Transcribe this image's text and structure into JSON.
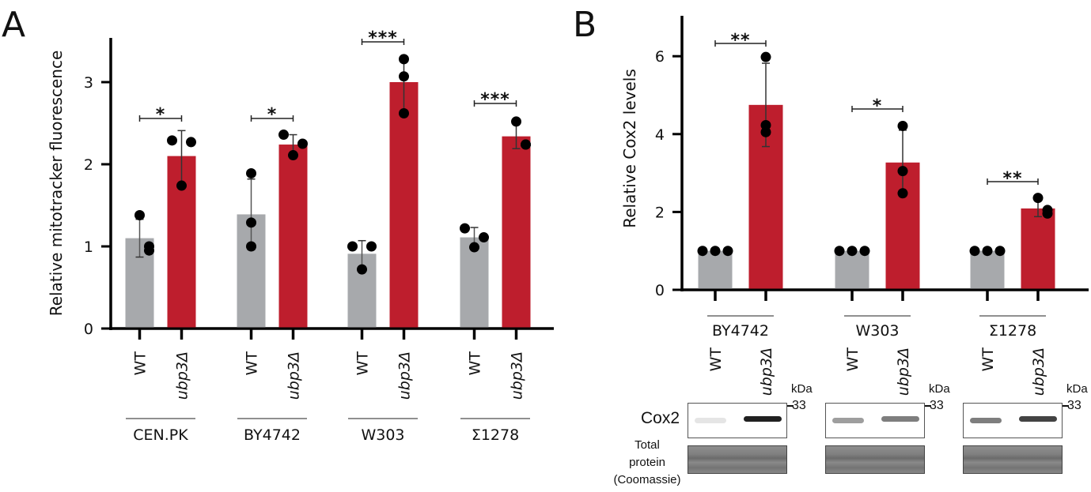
{
  "colors": {
    "wt": "#a7a9ac",
    "mutant": "#be1e2d",
    "point": "#000000"
  },
  "chart_data": [
    {
      "panel_label": "A",
      "type": "bar",
      "ylabel": "Relative mitotracker fluorescence",
      "ylim": [
        0,
        3.5
      ],
      "yticks": [
        "0",
        "1",
        "2",
        "3"
      ],
      "ytick_values": [
        0,
        1,
        2,
        3
      ],
      "conditions": [
        "WT",
        "ubp3Δ"
      ],
      "categories": [
        "CEN.PK",
        "BY4742",
        "W303",
        "Σ1278"
      ],
      "series": [
        {
          "name": "WT",
          "values": [
            1.1,
            1.39,
            0.91,
            1.11
          ],
          "err_low": [
            0.87,
            0.96,
            0.75,
            0.99
          ],
          "err_high": [
            1.33,
            1.82,
            1.07,
            1.23
          ],
          "points": [
            [
              1.38,
              0.95,
              1.0
            ],
            [
              1.89,
              1.29,
              1.0
            ],
            [
              1.0,
              1.0,
              0.72
            ],
            [
              1.22,
              1.11,
              0.99
            ]
          ]
        },
        {
          "name": "ubp3Δ",
          "values": [
            2.1,
            2.24,
            3.0,
            2.34
          ],
          "err_low": [
            1.75,
            2.11,
            2.62,
            2.19
          ],
          "err_high": [
            2.41,
            2.36,
            3.3,
            2.5
          ],
          "points": [
            [
              2.29,
              2.27,
              1.74
            ],
            [
              2.36,
              2.25,
              2.11
            ],
            [
              3.28,
              3.07,
              2.62
            ],
            [
              2.52,
              2.24,
              2.24
            ]
          ]
        }
      ],
      "significance": [
        "*",
        "*",
        "***",
        "***"
      ]
    },
    {
      "panel_label": "B",
      "type": "bar",
      "ylabel": "Relative Cox2 levels",
      "ylim": [
        0,
        7
      ],
      "yticks": [
        "0",
        "2",
        "4",
        "6"
      ],
      "ytick_values": [
        0,
        2,
        4,
        6
      ],
      "conditions": [
        "WT",
        "ubp3Δ"
      ],
      "categories": [
        "BY4742",
        "W303",
        "Σ1278"
      ],
      "series": [
        {
          "name": "WT",
          "values": [
            1,
            1,
            1
          ],
          "err_low": [
            1,
            1,
            1
          ],
          "err_high": [
            1,
            1,
            1
          ],
          "points": [
            [
              1,
              1,
              1
            ],
            [
              1,
              1,
              1
            ],
            [
              1,
              1,
              1
            ]
          ]
        },
        {
          "name": "ubp3Δ",
          "values": [
            4.75,
            3.27,
            2.09
          ],
          "err_low": [
            3.68,
            2.45,
            1.88
          ],
          "err_high": [
            5.82,
            4.1,
            2.33
          ],
          "points": [
            [
              5.98,
              4.05,
              4.23
            ],
            [
              4.21,
              3.05,
              2.48
            ],
            [
              2.36,
              1.96,
              2.05
            ]
          ]
        }
      ],
      "significance": [
        "**",
        "*",
        "**"
      ]
    }
  ],
  "blot": {
    "row_label": "Cox2",
    "loading_label_lines": [
      "Total",
      "protein",
      "(Coomassie)"
    ],
    "unit_label": "kDa",
    "marker": "33",
    "wt_band_intensity": [
      0.12,
      0.45,
      0.6
    ],
    "mut_band_intensity": [
      0.95,
      0.55,
      0.8
    ]
  }
}
